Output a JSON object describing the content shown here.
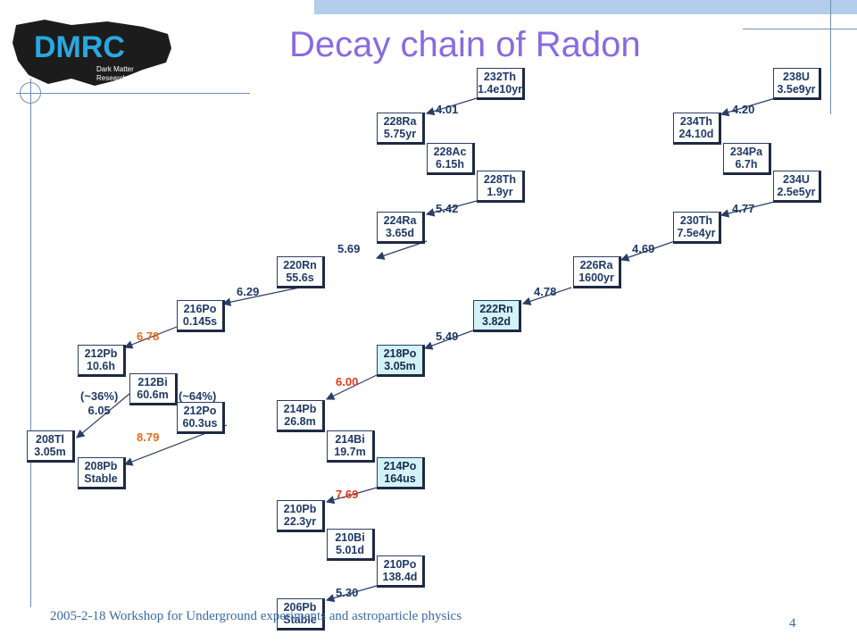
{
  "title": "Decay chain of Radon",
  "logo": {
    "text": "DMRC",
    "line1": "Dark Matter",
    "line2": "Research Center",
    "color": "#2aa7e0"
  },
  "footer": {
    "text": "2005-2-18  Workshop for Underground experiments and astroparticle physics",
    "page": "4"
  },
  "nuclides": [
    {
      "id": "th232",
      "iso": "232Th",
      "hl": "1.4e10yr",
      "highlight": false
    },
    {
      "id": "ra228",
      "iso": "228Ra",
      "hl": "5.75yr",
      "highlight": false
    },
    {
      "id": "ac228",
      "iso": "228Ac",
      "hl": "6.15h",
      "highlight": false
    },
    {
      "id": "th228",
      "iso": "228Th",
      "hl": "1.9yr",
      "highlight": false
    },
    {
      "id": "ra224",
      "iso": "224Ra",
      "hl": "3.65d",
      "highlight": false
    },
    {
      "id": "rn220",
      "iso": "220Rn",
      "hl": "55.6s",
      "highlight": false
    },
    {
      "id": "po216",
      "iso": "216Po",
      "hl": "0.145s",
      "highlight": false
    },
    {
      "id": "pb212",
      "iso": "212Pb",
      "hl": "10.6h",
      "highlight": false
    },
    {
      "id": "bi212",
      "iso": "212Bi",
      "hl": "60.6m",
      "highlight": false
    },
    {
      "id": "po212",
      "iso": "212Po",
      "hl": "60.3us",
      "highlight": false
    },
    {
      "id": "tl208",
      "iso": "208Tl",
      "hl": "3.05m",
      "highlight": false
    },
    {
      "id": "pb208",
      "iso": "208Pb",
      "hl": "Stable",
      "highlight": false
    },
    {
      "id": "u238",
      "iso": "238U",
      "hl": "3.5e9yr",
      "highlight": false
    },
    {
      "id": "th234",
      "iso": "234Th",
      "hl": "24.10d",
      "highlight": false
    },
    {
      "id": "pa234",
      "iso": "234Pa",
      "hl": "6.7h",
      "highlight": false
    },
    {
      "id": "u234",
      "iso": "234U",
      "hl": "2.5e5yr",
      "highlight": false
    },
    {
      "id": "th230",
      "iso": "230Th",
      "hl": "7.5e4yr",
      "highlight": false
    },
    {
      "id": "ra226",
      "iso": "226Ra",
      "hl": "1600yr",
      "highlight": false
    },
    {
      "id": "rn222",
      "iso": "222Rn",
      "hl": "3.82d",
      "highlight": true
    },
    {
      "id": "po218",
      "iso": "218Po",
      "hl": "3.05m",
      "highlight": true
    },
    {
      "id": "pb214",
      "iso": "214Pb",
      "hl": "26.8m",
      "highlight": false
    },
    {
      "id": "bi214",
      "iso": "214Bi",
      "hl": "19.7m",
      "highlight": false
    },
    {
      "id": "po214",
      "iso": "214Po",
      "hl": "164us",
      "highlight": true
    },
    {
      "id": "pb210",
      "iso": "210Pb",
      "hl": "22.3yr",
      "highlight": false
    },
    {
      "id": "bi210",
      "iso": "210Bi",
      "hl": "5.01d",
      "highlight": false
    },
    {
      "id": "po210",
      "iso": "210Po",
      "hl": "138.4d",
      "highlight": false
    },
    {
      "id": "pb206",
      "iso": "206Pb",
      "hl": "Stable",
      "highlight": false
    }
  ],
  "alpha_energies": [
    {
      "id": "a1",
      "label": "4.01",
      "color": "default"
    },
    {
      "id": "a2",
      "label": "5.42",
      "color": "default"
    },
    {
      "id": "a3",
      "label": "5.69",
      "color": "default"
    },
    {
      "id": "a4",
      "label": "6.29",
      "color": "default"
    },
    {
      "id": "a5",
      "label": "6.78",
      "color": "orange"
    },
    {
      "id": "a6",
      "label": "8.79",
      "color": "orange"
    },
    {
      "id": "a7",
      "label": "4.20",
      "color": "default"
    },
    {
      "id": "a8",
      "label": "4.77",
      "color": "default"
    },
    {
      "id": "a9",
      "label": "4.69",
      "color": "default"
    },
    {
      "id": "a10",
      "label": "4.78",
      "color": "default"
    },
    {
      "id": "a11",
      "label": "5.49",
      "color": "default"
    },
    {
      "id": "a12",
      "label": "6.00",
      "color": "red"
    },
    {
      "id": "a13",
      "label": "7.69",
      "color": "red"
    },
    {
      "id": "a14",
      "label": "5.30",
      "color": "default"
    }
  ],
  "branches": {
    "left_pct": "(~36%)",
    "left_energy": "6.05",
    "right_pct": "(~64%)"
  }
}
